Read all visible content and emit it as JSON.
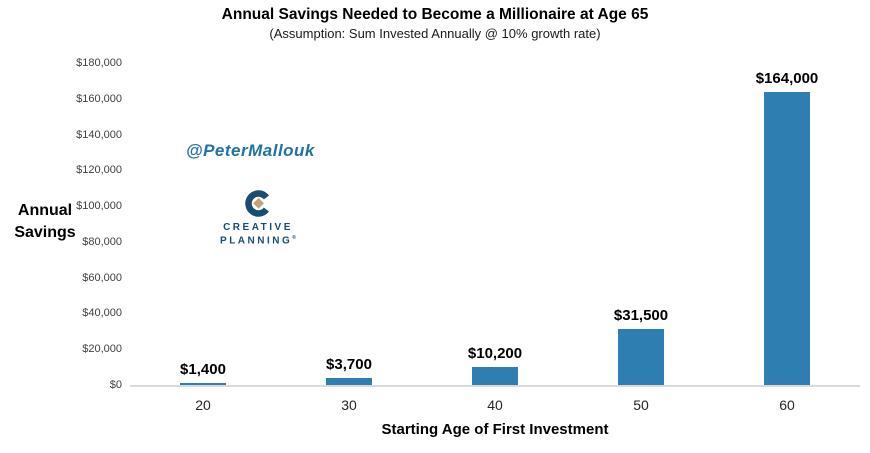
{
  "chart_data": {
    "type": "bar",
    "title": "Annual Savings Needed to Become a Millionaire at Age 65",
    "subtitle": "(Assumption: Sum Invested Annually @ 10% growth rate)",
    "categories": [
      "20",
      "30",
      "40",
      "50",
      "60"
    ],
    "values": [
      1400,
      3700,
      10200,
      31500,
      164000
    ],
    "value_labels": [
      "$1,400",
      "$3,700",
      "$10,200",
      "$31,500",
      "$164,000"
    ],
    "xlabel": "Starting Age of First Investment",
    "ylabel": "Annual Savings",
    "ylim": [
      0,
      180000
    ],
    "ytick_interval": 20000,
    "ytick_labels": [
      "$0",
      "$20,000",
      "$40,000",
      "$60,000",
      "$80,000",
      "$100,000",
      "$120,000",
      "$140,000",
      "$160,000",
      "$180,000"
    ],
    "grid": false,
    "legend": "none",
    "bar_color": "#2E7EB2"
  },
  "watermark": {
    "handle": "@PeterMallouk",
    "color": "#2173A6"
  },
  "logo": {
    "line1": "CREATIVE",
    "line2": "PLANNING",
    "trademark": "®",
    "navy": "#1A4C70",
    "gold": "#C2A372"
  }
}
